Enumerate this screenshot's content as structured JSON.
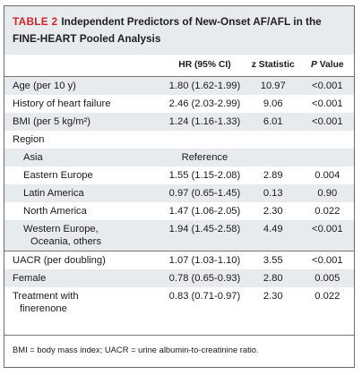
{
  "caption": {
    "tag": "TABLE 2",
    "title": "Independent Predictors of New-Onset AF/AFL in the FINE-HEART Pooled Analysis"
  },
  "columns": {
    "hr": "HR (95% CI)",
    "z": "z Statistic",
    "p_italic": "P",
    "p_rest": " Value"
  },
  "rows": [
    {
      "label": "Age (per 10 y)",
      "hr": "1.80 (1.62-1.99)",
      "z": "10.97",
      "p": "<0.001"
    },
    {
      "label": "History of heart failure",
      "hr": "2.46 (2.03-2.99)",
      "z": "9.06",
      "p": "<0.001"
    },
    {
      "label": "BMI (per 5 kg/m²)",
      "hr": "1.24 (1.16-1.33)",
      "z": "6.01",
      "p": "<0.001"
    },
    {
      "label": "Region",
      "hr": "",
      "z": "",
      "p": ""
    },
    {
      "label": "Asia",
      "hr": "Reference",
      "z": "",
      "p": ""
    },
    {
      "label": "Eastern Europe",
      "hr": "1.55 (1.15-2.08)",
      "z": "2.89",
      "p": "0.004"
    },
    {
      "label": "Latin America",
      "hr": "0.97 (0.65-1.45)",
      "z": "0.13",
      "p": "0.90"
    },
    {
      "label": "North America",
      "hr": "1.47 (1.06-2.05)",
      "z": "2.30",
      "p": "0.022"
    },
    {
      "label_line1": "Western Europe,",
      "label_line2": "Oceania, others",
      "hr": "1.94 (1.45-2.58)",
      "z": "4.49",
      "p": "<0.001"
    },
    {
      "label": "UACR (per doubling)",
      "hr": "1.07 (1.03-1.10)",
      "z": "3.55",
      "p": "<0.001"
    },
    {
      "label": "Female",
      "hr": "0.78 (0.65-0.93)",
      "z": "2.80",
      "p": "0.005"
    },
    {
      "label_line1": "Treatment with",
      "label_line2": "finerenone",
      "hr": "0.83 (0.71-0.97)",
      "z": "2.30",
      "p": "0.022"
    }
  ],
  "footnote": "BMI = body mass index; UACR = urine albumin-to-creatinine ratio."
}
